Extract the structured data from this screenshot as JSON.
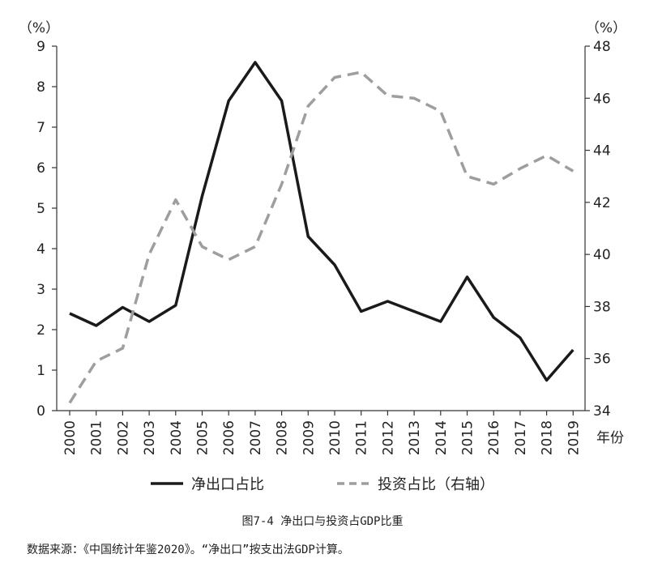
{
  "chart_data": {
    "type": "line",
    "x": [
      "2000",
      "2001",
      "2002",
      "2003",
      "2004",
      "2005",
      "2006",
      "2007",
      "2008",
      "2009",
      "2010",
      "2011",
      "2012",
      "2013",
      "2014",
      "2015",
      "2016",
      "2017",
      "2018",
      "2019"
    ],
    "x_unit": "年份",
    "y_left": {
      "unit": "（%）",
      "range": [
        0,
        9
      ],
      "ticks": [
        0,
        1,
        2,
        3,
        4,
        5,
        6,
        7,
        8,
        9
      ]
    },
    "y_right": {
      "unit": "（%）",
      "range": [
        34,
        48
      ],
      "ticks": [
        34,
        36,
        38,
        40,
        42,
        44,
        46,
        48
      ]
    },
    "series": [
      {
        "name": "净出口占比",
        "axis": "left",
        "style": "solid",
        "color": "#1a1a1a",
        "values": [
          2.4,
          2.1,
          2.55,
          2.2,
          2.6,
          5.3,
          7.65,
          8.6,
          7.65,
          4.3,
          3.6,
          2.45,
          2.7,
          2.45,
          2.2,
          3.3,
          2.3,
          1.8,
          0.75,
          1.5
        ]
      },
      {
        "name": "投资占比（右轴）",
        "axis": "right",
        "style": "dashed",
        "color": "#9e9e9e",
        "values": [
          34.3,
          35.9,
          36.4,
          40.0,
          42.1,
          40.3,
          39.8,
          40.3,
          42.7,
          45.7,
          46.8,
          47.0,
          46.1,
          46.0,
          45.5,
          43.0,
          42.7,
          43.3,
          43.8,
          43.2
        ]
      }
    ],
    "legend_position": "bottom",
    "grid": false
  },
  "caption": "图7-4  净出口与投资占GDP比重",
  "source": "数据来源：《中国统计年鉴2020》。“净出口”按支出法GDP计算。"
}
